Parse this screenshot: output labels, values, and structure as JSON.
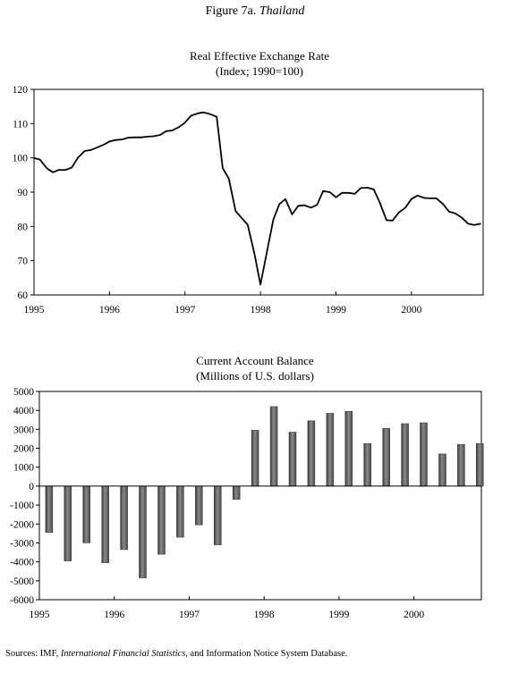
{
  "figure": {
    "label": "Figure 7a.",
    "country": "Thailand"
  },
  "source": {
    "prefix": "Sources: IMF, ",
    "italic": "International Financial Statistics",
    "suffix": ", and Information Notice System Database."
  },
  "chart_data": [
    {
      "type": "line",
      "title": "Real Effective Exchange Rate",
      "subtitle": "(Index; 1990=100)",
      "xlabel": "",
      "ylabel": "",
      "ylim": [
        60,
        120
      ],
      "yticks": [
        60,
        70,
        80,
        90,
        100,
        110,
        120
      ],
      "xlim": [
        1995,
        2000.95
      ],
      "xticks": [
        1995,
        1996,
        1997,
        1998,
        1999,
        2000
      ],
      "xtick_labels": [
        "1995",
        "1996",
        "1997",
        "1998",
        "1999",
        "2000"
      ],
      "grid": false,
      "series": [
        {
          "x": [
            1995.0,
            1995.08,
            1995.17,
            1995.25,
            1995.33,
            1995.42,
            1995.5,
            1995.58,
            1995.67,
            1995.75,
            1995.83,
            1995.92,
            1996.0,
            1996.08,
            1996.17,
            1996.25,
            1996.33,
            1996.42,
            1996.5,
            1996.58,
            1996.67,
            1996.75,
            1996.83,
            1996.92,
            1997.0,
            1997.08,
            1997.17,
            1997.25,
            1997.33,
            1997.42,
            1997.5,
            1997.58,
            1997.67,
            1997.75,
            1997.83,
            1997.92,
            1998.0,
            1998.08,
            1998.17,
            1998.25,
            1998.33,
            1998.42,
            1998.5,
            1998.58,
            1998.67,
            1998.75,
            1998.83,
            1998.92,
            1999.0,
            1999.08,
            1999.17,
            1999.25,
            1999.33,
            1999.42,
            1999.5,
            1999.58,
            1999.67,
            1999.75,
            1999.83,
            1999.92,
            2000.0,
            2000.08,
            2000.17,
            2000.25,
            2000.33,
            2000.42,
            2000.5,
            2000.58,
            2000.67,
            2000.75,
            2000.83,
            2000.92
          ],
          "values": [
            100.0,
            99.5,
            97.0,
            95.8,
            96.5,
            96.5,
            97.2,
            100.0,
            102.0,
            102.3,
            103.0,
            103.8,
            104.8,
            105.2,
            105.4,
            105.9,
            106.0,
            106.0,
            106.2,
            106.3,
            106.7,
            107.8,
            108.0,
            109.0,
            110.3,
            112.3,
            113.0,
            113.3,
            112.8,
            112.0,
            97.0,
            94.0,
            84.5,
            82.5,
            80.5,
            72.0,
            63.0,
            72.0,
            82.0,
            86.5,
            88.0,
            83.5,
            86.0,
            86.2,
            85.5,
            86.3,
            90.3,
            90.0,
            88.5,
            89.8,
            89.8,
            89.5,
            91.2,
            91.3,
            90.8,
            87.0,
            81.8,
            81.7,
            84.0,
            85.5,
            88.0,
            89.0,
            88.3,
            88.2,
            88.2,
            86.5,
            84.3,
            83.8,
            82.5,
            80.8,
            80.4,
            80.8
          ]
        }
      ]
    },
    {
      "type": "bar",
      "title": "Current Account Balance",
      "subtitle": "(Millions of U.S. dollars)",
      "xlabel": "",
      "ylabel": "",
      "ylim": [
        -6000,
        5000
      ],
      "yticks": [
        -6000,
        -5000,
        -4000,
        -3000,
        -2000,
        -1000,
        0,
        1000,
        2000,
        3000,
        4000,
        5000
      ],
      "xlim": [
        1995,
        2000.9
      ],
      "xticks": [
        1995,
        1996,
        1997,
        1998,
        1999,
        2000
      ],
      "xtick_labels": [
        "1995",
        "1996",
        "1997",
        "1998",
        "1999",
        "2000"
      ],
      "grid": false,
      "series": [
        {
          "x": [
            1995.13,
            1995.38,
            1995.63,
            1995.88,
            1996.13,
            1996.38,
            1996.63,
            1996.88,
            1997.13,
            1997.38,
            1997.63,
            1997.88,
            1998.13,
            1998.38,
            1998.63,
            1998.88,
            1999.13,
            1999.38,
            1999.63,
            1999.88,
            2000.13,
            2000.38,
            2000.63,
            2000.88
          ],
          "values": [
            -2450,
            -3950,
            -3000,
            -4050,
            -3350,
            -4850,
            -3600,
            -2700,
            -2050,
            -3100,
            -700,
            2950,
            4200,
            2850,
            3450,
            3850,
            3950,
            2250,
            3050,
            3300,
            3350,
            1700,
            2200,
            2250
          ]
        }
      ]
    }
  ]
}
